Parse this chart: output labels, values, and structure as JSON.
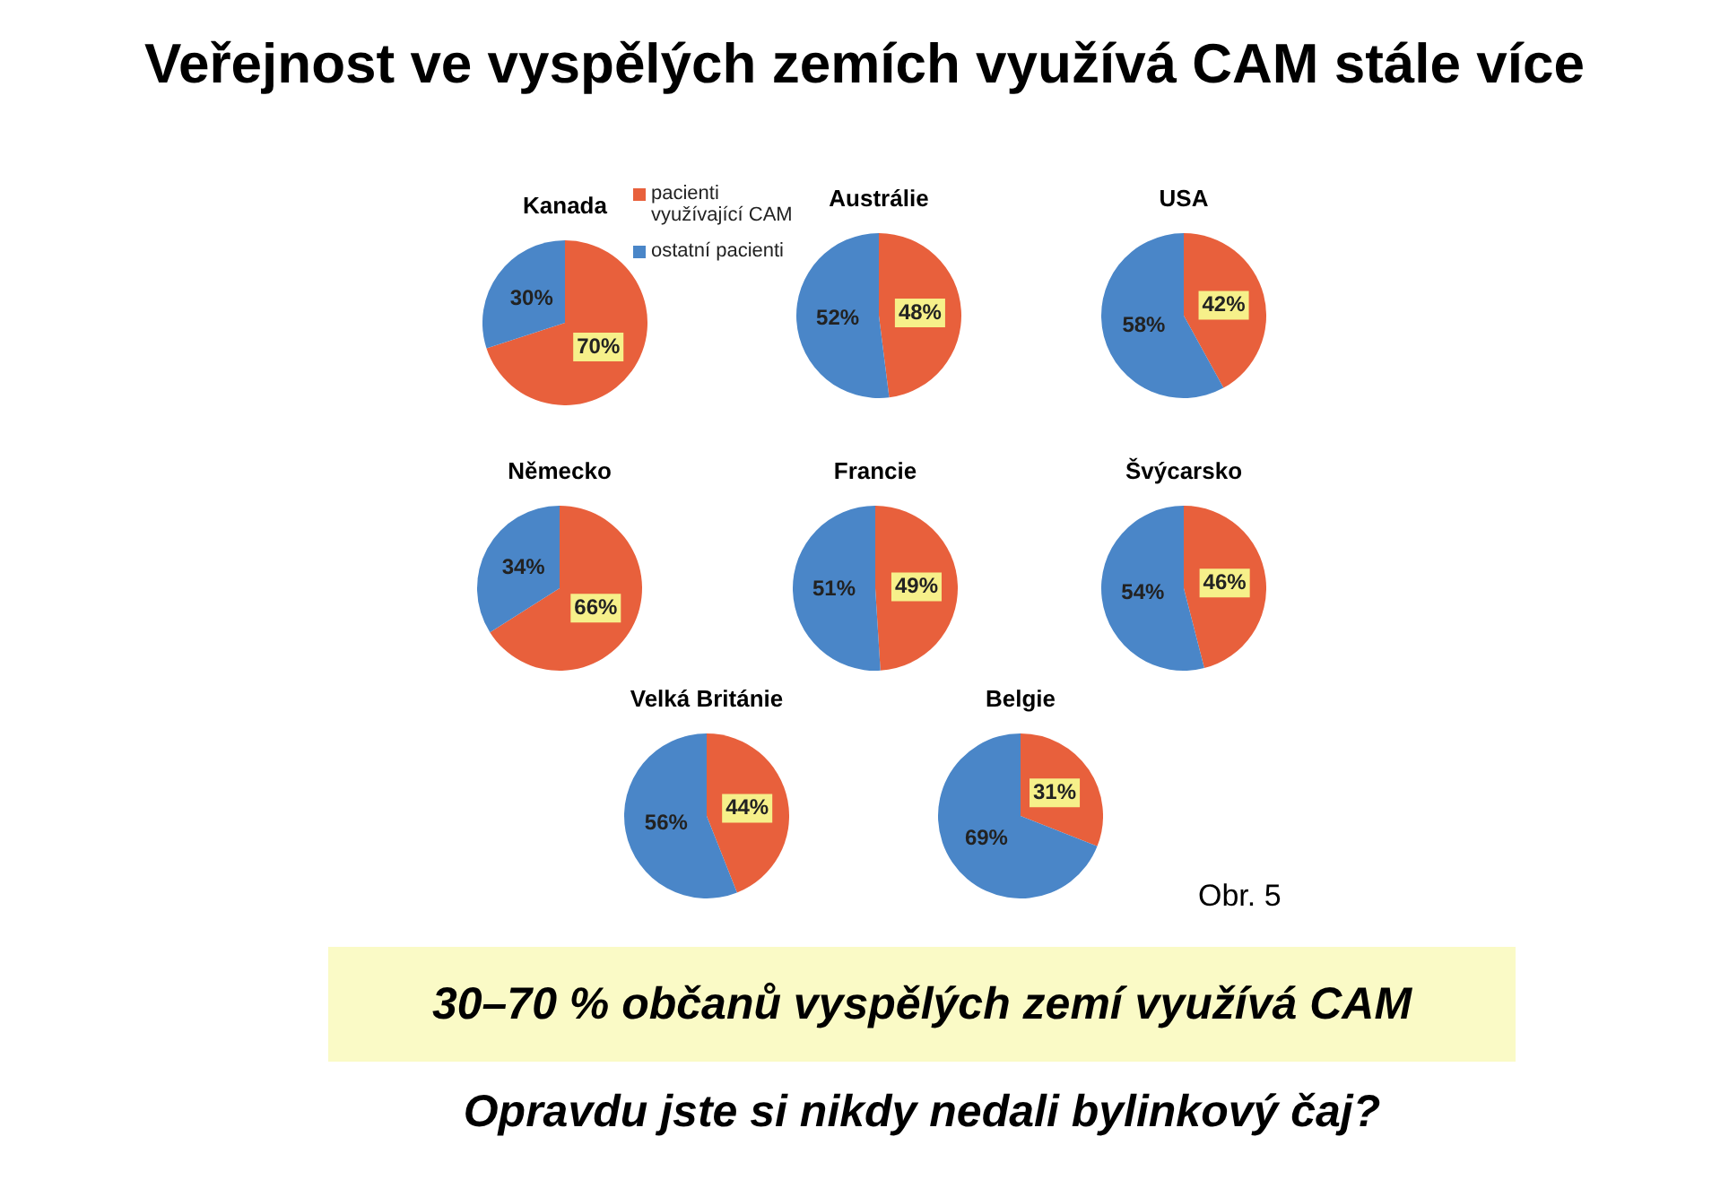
{
  "chart_data": [
    {
      "type": "other",
      "title": "Veřejnost ve vyspělých zemích využívá CAM stále více"
    },
    {
      "type": "pie",
      "title": "Kanada",
      "categories": [
        "pacienti využívající CAM",
        "ostatní pacienti"
      ],
      "values": [
        70,
        30
      ],
      "value_labels": [
        "70%",
        "30%"
      ],
      "colors": [
        "#e8603c",
        "#4a86c8"
      ],
      "legend": "right"
    },
    {
      "type": "pie",
      "title": "Austrálie",
      "categories": [
        null,
        null
      ],
      "values": [
        48,
        52
      ],
      "value_labels": [
        "48%",
        "52%"
      ],
      "colors": [
        "#e8603c",
        "#4a86c8"
      ]
    },
    {
      "type": "pie",
      "title": "USA",
      "categories": [
        null,
        null
      ],
      "values": [
        42,
        58
      ],
      "value_labels": [
        "42%",
        "58%"
      ],
      "colors": [
        "#e8603c",
        "#4a86c8"
      ]
    },
    {
      "type": "pie",
      "title": "Německo",
      "categories": [
        null,
        null
      ],
      "values": [
        66,
        34
      ],
      "value_labels": [
        "66%",
        "34%"
      ],
      "colors": [
        "#e8603c",
        "#4a86c8"
      ]
    },
    {
      "type": "pie",
      "title": "Francie",
      "categories": [
        null,
        null
      ],
      "values": [
        49,
        51
      ],
      "value_labels": [
        "49%",
        "51%"
      ],
      "colors": [
        "#e8603c",
        "#4a86c8"
      ]
    },
    {
      "type": "pie",
      "title": "Švýcarsko",
      "categories": [
        null,
        null
      ],
      "values": [
        46,
        54
      ],
      "value_labels": [
        "46%",
        "54%"
      ],
      "colors": [
        "#e8603c",
        "#4a86c8"
      ]
    },
    {
      "type": "pie",
      "title": "Velká Británie",
      "categories": [
        null,
        null
      ],
      "values": [
        44,
        56
      ],
      "value_labels": [
        "44%",
        "56%"
      ],
      "colors": [
        "#e8603c",
        "#4a86c8"
      ]
    },
    {
      "type": "pie",
      "title": "Belgie",
      "categories": [
        null,
        null
      ],
      "values": [
        31,
        69
      ],
      "value_labels": [
        "31%",
        "69%"
      ],
      "colors": [
        "#e8603c",
        "#4a86c8"
      ]
    },
    {
      "type": "other",
      "annotations": [
        "Obr. 5",
        "30–70 % občanů vyspělých zemí využívá CAM",
        "Opravdu jste si nikdy nedali bylinkový čaj?"
      ]
    }
  ]
}
